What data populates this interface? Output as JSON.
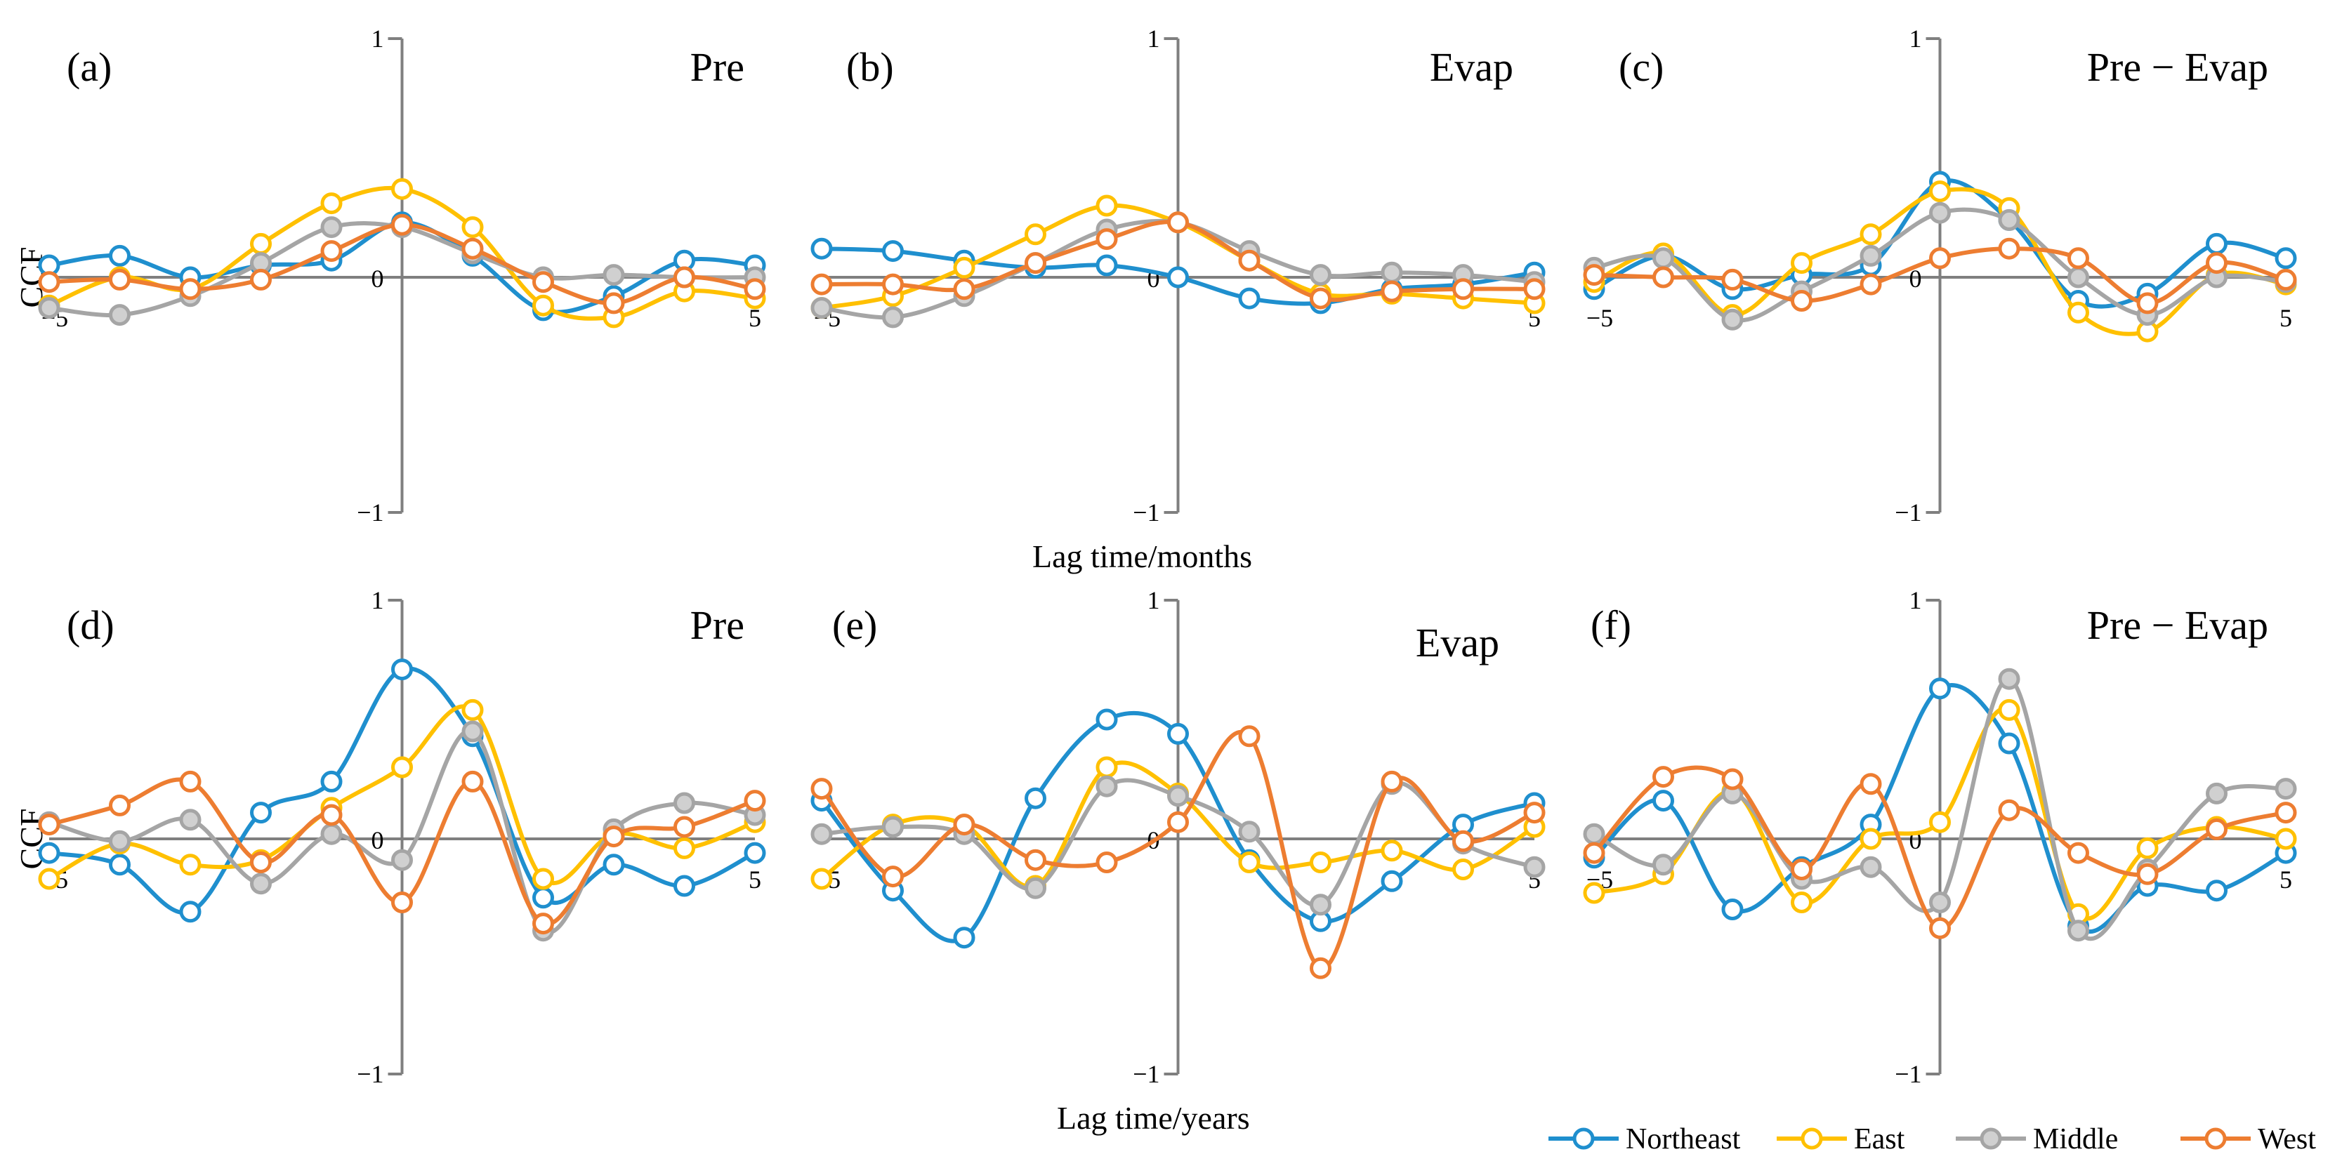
{
  "figure": {
    "x_axis_label_top": "Lag time/months",
    "x_axis_label_bottom": "Lag time/years",
    "y_axis_label": "CCF"
  },
  "legend": [
    {
      "name": "Northeast",
      "color": "#1f8fce"
    },
    {
      "name": "East",
      "color": "#ffc000"
    },
    {
      "name": "Middle",
      "color": "#a5a5a5"
    },
    {
      "name": "West",
      "color": "#ed7d31"
    }
  ],
  "chart_data": [
    {
      "type": "line",
      "label": "(a)",
      "title": "Pre",
      "xlabel": "Lag time/months",
      "ylabel": "CCF",
      "xlim": [
        -5,
        5
      ],
      "ylim": [
        -1,
        1
      ],
      "x_ticks": [
        "−5",
        "0",
        "5"
      ],
      "y_ticks": [
        "1",
        "0",
        "−1"
      ],
      "x": [
        -5,
        -4,
        -3,
        -2,
        -1,
        0,
        1,
        2,
        3,
        4,
        5
      ],
      "series": [
        {
          "name": "Northeast",
          "values": [
            0.05,
            0.09,
            0.0,
            0.05,
            0.07,
            0.23,
            0.09,
            -0.14,
            -0.08,
            0.07,
            0.05
          ]
        },
        {
          "name": "East",
          "values": [
            -0.12,
            0.0,
            -0.05,
            0.14,
            0.31,
            0.37,
            0.21,
            -0.12,
            -0.17,
            -0.06,
            -0.09
          ]
        },
        {
          "name": "Middle",
          "values": [
            -0.13,
            -0.16,
            -0.08,
            0.06,
            0.21,
            0.21,
            0.1,
            0.0,
            0.01,
            0.0,
            0.0
          ]
        },
        {
          "name": "West",
          "values": [
            -0.02,
            -0.01,
            -0.05,
            -0.01,
            0.11,
            0.22,
            0.12,
            -0.02,
            -0.11,
            0.0,
            -0.05
          ]
        }
      ]
    },
    {
      "type": "line",
      "label": "(b)",
      "title": "Evap",
      "xlabel": "Lag time/months",
      "ylabel": "CCF",
      "xlim": [
        -5,
        5
      ],
      "ylim": [
        -1,
        1
      ],
      "x_ticks": [
        "−5",
        "0",
        "5"
      ],
      "y_ticks": [
        "1",
        "0",
        "−1"
      ],
      "x": [
        -5,
        -4,
        -3,
        -2,
        -1,
        0,
        1,
        2,
        3,
        4,
        5
      ],
      "series": [
        {
          "name": "Northeast",
          "values": [
            0.12,
            0.11,
            0.07,
            0.04,
            0.05,
            0.0,
            -0.09,
            -0.11,
            -0.05,
            -0.03,
            0.02
          ]
        },
        {
          "name": "East",
          "values": [
            -0.13,
            -0.08,
            0.04,
            0.18,
            0.3,
            0.23,
            0.07,
            -0.07,
            -0.07,
            -0.09,
            -0.11
          ]
        },
        {
          "name": "Middle",
          "values": [
            -0.13,
            -0.17,
            -0.08,
            0.06,
            0.2,
            0.23,
            0.11,
            0.01,
            0.02,
            0.01,
            -0.02
          ]
        },
        {
          "name": "West",
          "values": [
            -0.03,
            -0.03,
            -0.05,
            0.06,
            0.16,
            0.23,
            0.07,
            -0.09,
            -0.06,
            -0.05,
            -0.05
          ]
        }
      ]
    },
    {
      "type": "line",
      "label": "(c)",
      "title": "Pre − Evap",
      "xlabel": "Lag time/months",
      "ylabel": "CCF",
      "xlim": [
        -5,
        5
      ],
      "ylim": [
        -1,
        1
      ],
      "x_ticks": [
        "−5",
        "0",
        "5"
      ],
      "y_ticks": [
        "1",
        "0",
        "−1"
      ],
      "x": [
        -5,
        -4,
        -3,
        -2,
        -1,
        0,
        1,
        2,
        3,
        4,
        5
      ],
      "series": [
        {
          "name": "Northeast",
          "values": [
            -0.05,
            0.09,
            -0.05,
            0.01,
            0.05,
            0.4,
            0.24,
            -0.1,
            -0.07,
            0.14,
            0.08
          ]
        },
        {
          "name": "East",
          "values": [
            -0.02,
            0.1,
            -0.16,
            0.06,
            0.18,
            0.36,
            0.29,
            -0.15,
            -0.23,
            0.01,
            -0.03
          ]
        },
        {
          "name": "Middle",
          "values": [
            0.04,
            0.08,
            -0.18,
            -0.06,
            0.09,
            0.27,
            0.24,
            0.0,
            -0.16,
            0.0,
            -0.02
          ]
        },
        {
          "name": "West",
          "values": [
            0.01,
            0.0,
            -0.01,
            -0.1,
            -0.03,
            0.08,
            0.12,
            0.08,
            -0.11,
            0.06,
            -0.01
          ]
        }
      ]
    },
    {
      "type": "line",
      "label": "(d)",
      "title": "Pre",
      "xlabel": "Lag time/years",
      "ylabel": "CCF",
      "xlim": [
        -5,
        5
      ],
      "ylim": [
        -1,
        1
      ],
      "x_ticks": [
        "−5",
        "0",
        "5"
      ],
      "y_ticks": [
        "1",
        "0",
        "−1"
      ],
      "x": [
        -5,
        -4,
        -3,
        -2,
        -1,
        0,
        1,
        2,
        3,
        4,
        5
      ],
      "series": [
        {
          "name": "Northeast",
          "values": [
            -0.06,
            -0.11,
            -0.31,
            0.11,
            0.24,
            0.71,
            0.43,
            -0.25,
            -0.11,
            -0.2,
            -0.06
          ]
        },
        {
          "name": "East",
          "values": [
            -0.17,
            -0.02,
            -0.11,
            -0.09,
            0.13,
            0.3,
            0.54,
            -0.17,
            0.02,
            -0.04,
            0.07
          ]
        },
        {
          "name": "Middle",
          "values": [
            0.07,
            -0.01,
            0.08,
            -0.19,
            0.02,
            -0.09,
            0.45,
            -0.39,
            0.04,
            0.15,
            0.1
          ]
        },
        {
          "name": "West",
          "values": [
            0.06,
            0.14,
            0.24,
            -0.1,
            0.1,
            -0.27,
            0.24,
            -0.36,
            0.01,
            0.05,
            0.16
          ]
        }
      ]
    },
    {
      "type": "line",
      "label": "(e)",
      "title": "Evap",
      "xlabel": "Lag time/years",
      "ylabel": "CCF",
      "xlim": [
        -5,
        5
      ],
      "ylim": [
        -1,
        1
      ],
      "x_ticks": [
        "−5",
        "0",
        "5"
      ],
      "y_ticks": [
        "1",
        "0",
        "−1"
      ],
      "x": [
        -5,
        -4,
        -3,
        -2,
        -1,
        0,
        1,
        2,
        3,
        4,
        5
      ],
      "series": [
        {
          "name": "Northeast",
          "values": [
            0.16,
            -0.22,
            -0.42,
            0.17,
            0.5,
            0.44,
            -0.09,
            -0.35,
            -0.18,
            0.06,
            0.15
          ]
        },
        {
          "name": "East",
          "values": [
            -0.17,
            0.06,
            0.06,
            -0.2,
            0.3,
            0.19,
            -0.1,
            -0.1,
            -0.05,
            -0.13,
            0.05
          ]
        },
        {
          "name": "Middle",
          "values": [
            0.02,
            0.05,
            0.02,
            -0.21,
            0.22,
            0.18,
            0.03,
            -0.28,
            0.23,
            -0.02,
            -0.12
          ]
        },
        {
          "name": "West",
          "values": [
            0.21,
            -0.16,
            0.06,
            -0.09,
            -0.1,
            0.07,
            0.43,
            -0.55,
            0.24,
            -0.01,
            0.11
          ]
        }
      ]
    },
    {
      "type": "line",
      "label": "(f)",
      "title": "Pre − Evap",
      "xlabel": "Lag time/years",
      "ylabel": "CCF",
      "xlim": [
        -5,
        5
      ],
      "ylim": [
        -1,
        1
      ],
      "x_ticks": [
        "−5",
        "0",
        "5"
      ],
      "y_ticks": [
        "1",
        "0",
        "−1"
      ],
      "x": [
        -5,
        -4,
        -3,
        -2,
        -1,
        0,
        1,
        2,
        3,
        4,
        5
      ],
      "series": [
        {
          "name": "Northeast",
          "values": [
            -0.08,
            0.16,
            -0.3,
            -0.12,
            0.06,
            0.63,
            0.4,
            -0.37,
            -0.2,
            -0.22,
            -0.06
          ]
        },
        {
          "name": "East",
          "values": [
            -0.23,
            -0.15,
            0.2,
            -0.27,
            0.0,
            0.07,
            0.54,
            -0.32,
            -0.04,
            0.05,
            0.0
          ]
        },
        {
          "name": "Middle",
          "values": [
            0.02,
            -0.11,
            0.19,
            -0.17,
            -0.12,
            -0.27,
            0.67,
            -0.39,
            -0.13,
            0.19,
            0.21
          ]
        },
        {
          "name": "West",
          "values": [
            -0.06,
            0.26,
            0.25,
            -0.13,
            0.23,
            -0.38,
            0.12,
            -0.06,
            -0.15,
            0.04,
            0.11
          ]
        }
      ]
    }
  ]
}
